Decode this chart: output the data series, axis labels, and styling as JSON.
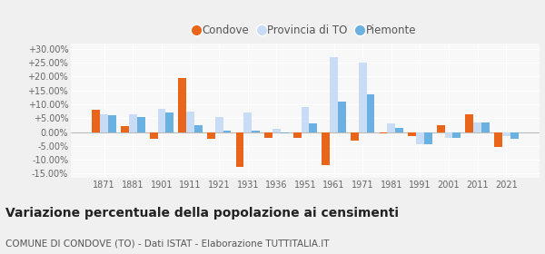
{
  "years": [
    1871,
    1881,
    1901,
    1911,
    1921,
    1931,
    1936,
    1951,
    1961,
    1971,
    1981,
    1991,
    2001,
    2011,
    2021
  ],
  "condove": [
    8.0,
    2.0,
    -2.5,
    19.5,
    -2.5,
    -12.5,
    -2.0,
    -2.0,
    -12.0,
    -3.0,
    -0.5,
    -1.5,
    2.5,
    6.5,
    -5.5
  ],
  "provincia": [
    6.5,
    6.5,
    8.5,
    7.5,
    5.5,
    7.0,
    1.0,
    9.0,
    27.0,
    25.0,
    3.0,
    -4.5,
    -2.0,
    3.5,
    -1.5
  ],
  "piemonte": [
    6.0,
    5.5,
    7.0,
    2.5,
    0.5,
    0.5,
    -0.5,
    3.0,
    11.0,
    13.5,
    1.5,
    -4.5,
    -2.0,
    3.5,
    -2.5
  ],
  "condove_color": "#e8651a",
  "provincia_color": "#c8ddf5",
  "piemonte_color": "#6ab0e0",
  "fig_bg": "#f0f0f0",
  "plot_bg": "#f8f8f8",
  "grid_color": "#ffffff",
  "title": "Variazione percentuale della popolazione ai censimenti",
  "subtitle": "COMUNE DI CONDOVE (TO) - Dati ISTAT - Elaborazione TUTTITALIA.IT",
  "legend_labels": [
    "Condove",
    "Provincia di TO",
    "Piemonte"
  ],
  "ylim": [
    -16.5,
    32.0
  ],
  "yticks": [
    -15,
    -10,
    -5,
    0,
    5,
    10,
    15,
    20,
    25,
    30
  ],
  "bar_width": 0.28,
  "title_fontsize": 10,
  "subtitle_fontsize": 7.5,
  "tick_fontsize": 7,
  "legend_fontsize": 8.5
}
